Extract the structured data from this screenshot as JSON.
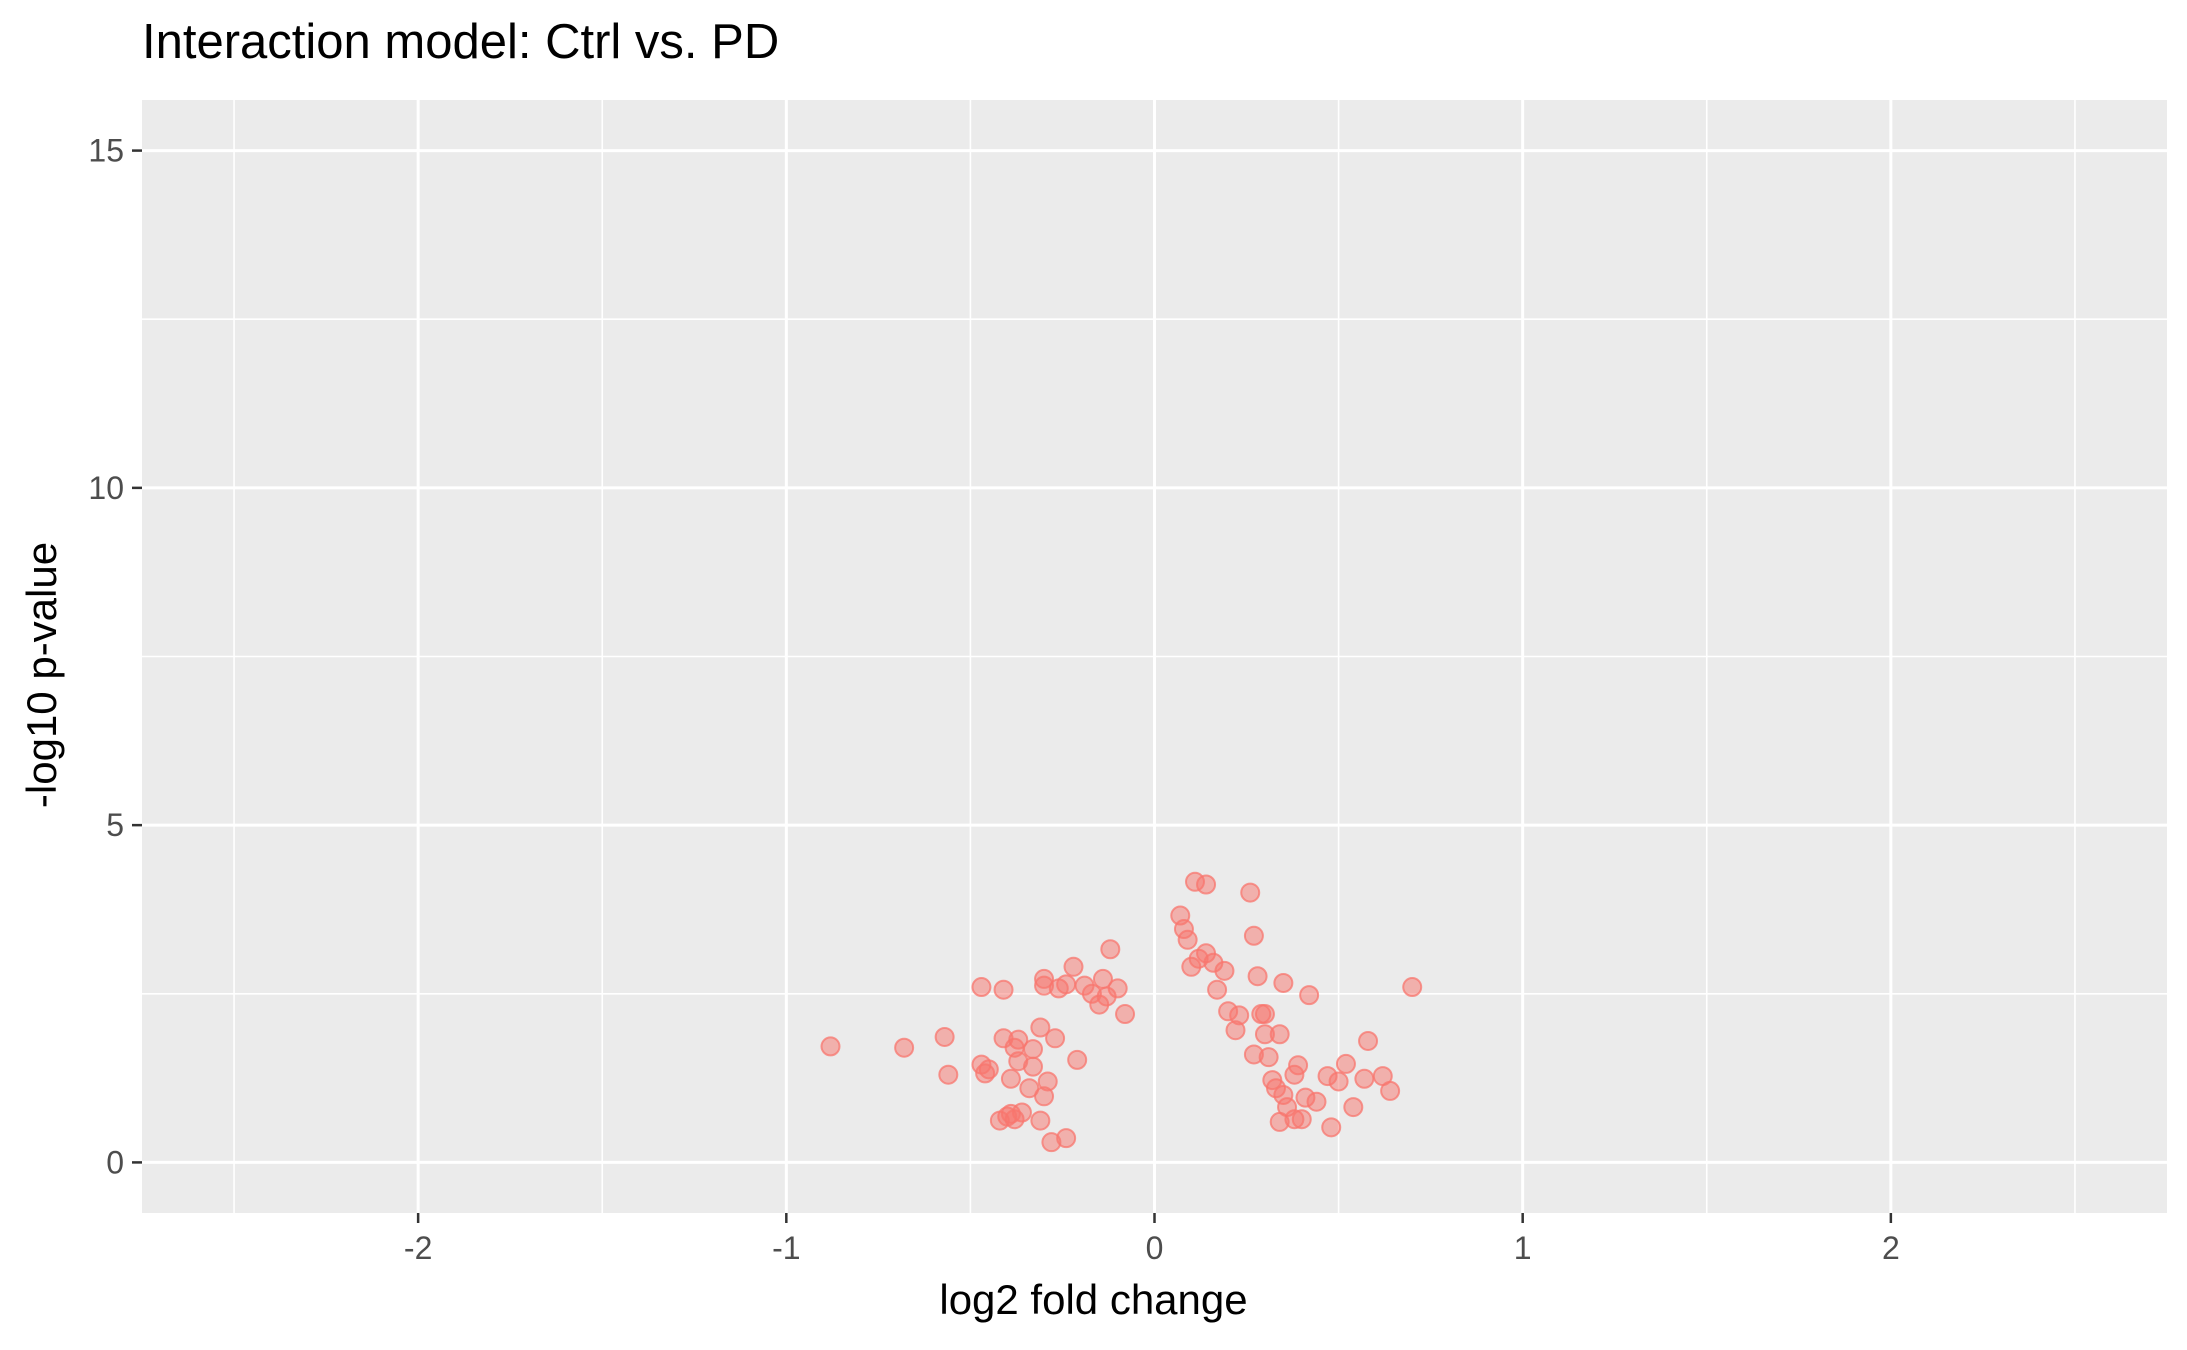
{
  "chart_data": {
    "type": "scatter",
    "title": "Interaction model: Ctrl vs. PD",
    "xlabel": "log2 fold change",
    "ylabel": "-log10 p-value",
    "xlim": [
      -2.75,
      2.75
    ],
    "ylim": [
      -0.75,
      15.75
    ],
    "x_ticks": [
      -2,
      -1,
      0,
      1,
      2
    ],
    "x_tick_labels": [
      "-2",
      "-1",
      "0",
      "1",
      "2"
    ],
    "y_ticks": [
      0,
      5,
      10,
      15
    ],
    "y_tick_labels": [
      "0",
      "5",
      "10",
      "15"
    ],
    "grid": true,
    "legend": "none",
    "point_color": "#F8766D",
    "point_alpha": 0.5,
    "panel_background": "#EBEBEB",
    "series": [
      {
        "points": [
          [
            -0.88,
            1.72
          ],
          [
            -0.68,
            1.7
          ],
          [
            -0.57,
            1.86
          ],
          [
            -0.56,
            1.3
          ],
          [
            -0.47,
            2.6
          ],
          [
            -0.47,
            1.45
          ],
          [
            -0.46,
            1.32
          ],
          [
            -0.45,
            1.38
          ],
          [
            -0.42,
            0.62
          ],
          [
            -0.41,
            1.84
          ],
          [
            -0.41,
            2.56
          ],
          [
            -0.4,
            0.68
          ],
          [
            -0.39,
            0.72
          ],
          [
            -0.39,
            1.24
          ],
          [
            -0.38,
            1.7
          ],
          [
            -0.38,
            0.64
          ],
          [
            -0.37,
            1.82
          ],
          [
            -0.37,
            1.5
          ],
          [
            -0.36,
            0.74
          ],
          [
            -0.34,
            1.1
          ],
          [
            -0.33,
            1.42
          ],
          [
            -0.33,
            1.68
          ],
          [
            -0.31,
            0.62
          ],
          [
            -0.31,
            2.0
          ],
          [
            -0.3,
            2.72
          ],
          [
            -0.3,
            2.62
          ],
          [
            -0.3,
            0.98
          ],
          [
            -0.29,
            1.2
          ],
          [
            -0.28,
            0.3
          ],
          [
            -0.27,
            1.84
          ],
          [
            -0.26,
            2.58
          ],
          [
            -0.24,
            2.64
          ],
          [
            -0.24,
            0.36
          ],
          [
            -0.22,
            2.9
          ],
          [
            -0.21,
            1.52
          ],
          [
            -0.19,
            2.62
          ],
          [
            -0.17,
            2.5
          ],
          [
            -0.15,
            2.34
          ],
          [
            -0.14,
            2.72
          ],
          [
            -0.13,
            2.46
          ],
          [
            -0.12,
            3.16
          ],
          [
            -0.1,
            2.58
          ],
          [
            -0.08,
            2.2
          ],
          [
            0.07,
            3.66
          ],
          [
            0.08,
            3.46
          ],
          [
            0.09,
            3.3
          ],
          [
            0.1,
            2.9
          ],
          [
            0.11,
            4.16
          ],
          [
            0.12,
            3.02
          ],
          [
            0.14,
            4.12
          ],
          [
            0.14,
            3.1
          ],
          [
            0.16,
            2.96
          ],
          [
            0.17,
            2.56
          ],
          [
            0.19,
            2.84
          ],
          [
            0.2,
            2.24
          ],
          [
            0.22,
            1.96
          ],
          [
            0.23,
            2.18
          ],
          [
            0.26,
            4.0
          ],
          [
            0.27,
            3.36
          ],
          [
            0.27,
            1.6
          ],
          [
            0.28,
            2.76
          ],
          [
            0.29,
            2.2
          ],
          [
            0.3,
            2.2
          ],
          [
            0.3,
            1.9
          ],
          [
            0.31,
            1.56
          ],
          [
            0.32,
            1.22
          ],
          [
            0.33,
            1.1
          ],
          [
            0.34,
            1.9
          ],
          [
            0.34,
            0.6
          ],
          [
            0.35,
            2.66
          ],
          [
            0.35,
            1.0
          ],
          [
            0.36,
            0.82
          ],
          [
            0.38,
            1.3
          ],
          [
            0.38,
            0.64
          ],
          [
            0.39,
            1.44
          ],
          [
            0.4,
            0.64
          ],
          [
            0.41,
            0.96
          ],
          [
            0.42,
            2.48
          ],
          [
            0.44,
            0.9
          ],
          [
            0.47,
            1.28
          ],
          [
            0.48,
            0.52
          ],
          [
            0.5,
            1.2
          ],
          [
            0.52,
            1.46
          ],
          [
            0.54,
            0.82
          ],
          [
            0.57,
            1.24
          ],
          [
            0.58,
            1.8
          ],
          [
            0.62,
            1.28
          ],
          [
            0.64,
            1.06
          ],
          [
            0.7,
            2.6
          ]
        ]
      }
    ]
  }
}
